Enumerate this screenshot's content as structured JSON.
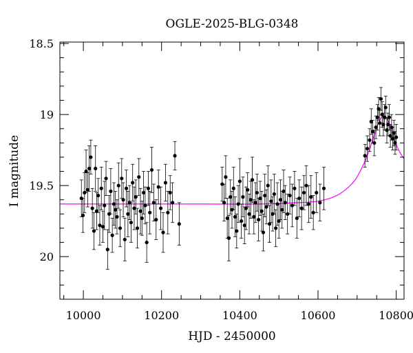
{
  "chart_data": {
    "type": "scatter",
    "title": "OGLE-2025-BLG-0348",
    "xlabel": "HJD - 2450000",
    "ylabel": "I magnitude",
    "xlim": [
      9940,
      10820
    ],
    "ylim": [
      20.3,
      18.49
    ],
    "y_inverted": true,
    "grid": false,
    "xticks": [
      10000,
      10200,
      10400,
      10600,
      10800
    ],
    "yticks": [
      18.5,
      19,
      19.5,
      20
    ],
    "xtick_labels": [
      "10000",
      "10200",
      "10400",
      "10600",
      "10800"
    ],
    "ytick_labels": [
      "18.5",
      "19",
      "19.5",
      "20"
    ],
    "colors": {
      "data": "#000000",
      "model": "#ff00ff",
      "axes": "#000000"
    },
    "model": {
      "name": "",
      "x": [
        9940,
        10100,
        10300,
        10450,
        10550,
        10600,
        10640,
        10670,
        10695,
        10715,
        10730,
        10742,
        10752,
        10760,
        10768,
        10775,
        10782,
        10790,
        10800,
        10810,
        10820
      ],
      "y": [
        19.63,
        19.63,
        19.63,
        19.63,
        19.62,
        19.61,
        19.58,
        19.53,
        19.46,
        19.36,
        19.26,
        19.16,
        19.08,
        19.03,
        19.01,
        19.02,
        19.06,
        19.13,
        19.21,
        19.27,
        19.31
      ]
    },
    "series": [
      {
        "name": "",
        "points": [
          [
            9995,
            19.59,
            0.13
          ],
          [
            9999,
            19.71,
            0.12
          ],
          [
            10003,
            19.55,
            0.14
          ],
          [
            10007,
            19.4,
            0.15
          ],
          [
            10011,
            19.53,
            0.12
          ],
          [
            10015,
            19.38,
            0.16
          ],
          [
            10019,
            19.3,
            0.12
          ],
          [
            10023,
            19.66,
            0.14
          ],
          [
            10027,
            19.82,
            0.13
          ],
          [
            10031,
            19.38,
            0.16
          ],
          [
            10034,
            19.68,
            0.13
          ],
          [
            10038,
            19.57,
            0.12
          ],
          [
            10042,
            19.78,
            0.14
          ],
          [
            10046,
            19.52,
            0.15
          ],
          [
            10050,
            19.79,
            0.11
          ],
          [
            10054,
            19.64,
            0.17
          ],
          [
            10058,
            19.45,
            0.12
          ],
          [
            10062,
            19.95,
            0.14
          ],
          [
            10066,
            19.7,
            0.13
          ],
          [
            10070,
            19.54,
            0.16
          ],
          [
            10074,
            19.85,
            0.12
          ],
          [
            10078,
            19.63,
            0.15
          ],
          [
            10082,
            19.67,
            0.13
          ],
          [
            10086,
            19.72,
            0.12
          ],
          [
            10090,
            19.5,
            0.16
          ],
          [
            10094,
            19.8,
            0.13
          ],
          [
            10098,
            19.45,
            0.14
          ],
          [
            10102,
            19.6,
            0.12
          ],
          [
            10106,
            19.88,
            0.15
          ],
          [
            10110,
            19.52,
            0.13
          ],
          [
            10114,
            19.7,
            0.16
          ],
          [
            10118,
            19.62,
            0.12
          ],
          [
            10122,
            19.76,
            0.14
          ],
          [
            10126,
            19.48,
            0.13
          ],
          [
            10130,
            19.66,
            0.15
          ],
          [
            10134,
            19.58,
            0.12
          ],
          [
            10138,
            19.8,
            0.14
          ],
          [
            10142,
            19.44,
            0.13
          ],
          [
            10146,
            19.68,
            0.16
          ],
          [
            10150,
            19.73,
            0.12
          ],
          [
            10154,
            19.55,
            0.15
          ],
          [
            10158,
            19.64,
            0.13
          ],
          [
            10162,
            19.9,
            0.14
          ],
          [
            10166,
            19.52,
            0.12
          ],
          [
            10170,
            19.69,
            0.15
          ],
          [
            10175,
            19.39,
            0.16
          ],
          [
            10180,
            19.62,
            0.13
          ],
          [
            10186,
            19.74,
            0.14
          ],
          [
            10192,
            19.51,
            0.12
          ],
          [
            10198,
            19.66,
            0.15
          ],
          [
            10204,
            19.83,
            0.14
          ],
          [
            10210,
            19.48,
            0.13
          ],
          [
            10216,
            19.69,
            0.15
          ],
          [
            10222,
            19.55,
            0.12
          ],
          [
            10228,
            19.62,
            0.14
          ],
          [
            10234,
            19.29,
            0.1
          ],
          [
            10245,
            19.77,
            0.15
          ],
          [
            10355,
            19.49,
            0.12
          ],
          [
            10360,
            19.62,
            0.13
          ],
          [
            10364,
            19.44,
            0.15
          ],
          [
            10368,
            19.73,
            0.14
          ],
          [
            10372,
            19.87,
            0.16
          ],
          [
            10376,
            19.58,
            0.12
          ],
          [
            10380,
            19.67,
            0.13
          ],
          [
            10384,
            19.52,
            0.15
          ],
          [
            10388,
            19.72,
            0.14
          ],
          [
            10392,
            19.82,
            0.12
          ],
          [
            10396,
            19.63,
            0.13
          ],
          [
            10400,
            19.47,
            0.16
          ],
          [
            10404,
            19.75,
            0.12
          ],
          [
            10408,
            19.58,
            0.14
          ],
          [
            10412,
            19.78,
            0.13
          ],
          [
            10416,
            19.66,
            0.15
          ],
          [
            10420,
            19.53,
            0.12
          ],
          [
            10424,
            19.7,
            0.14
          ],
          [
            10428,
            19.6,
            0.13
          ],
          [
            10432,
            19.46,
            0.16
          ],
          [
            10436,
            19.72,
            0.12
          ],
          [
            10440,
            19.62,
            0.14
          ],
          [
            10444,
            19.55,
            0.13
          ],
          [
            10448,
            19.74,
            0.15
          ],
          [
            10452,
            19.59,
            0.12
          ],
          [
            10456,
            19.68,
            0.14
          ],
          [
            10460,
            19.83,
            0.13
          ],
          [
            10464,
            19.57,
            0.15
          ],
          [
            10468,
            19.65,
            0.12
          ],
          [
            10472,
            19.5,
            0.14
          ],
          [
            10476,
            19.77,
            0.13
          ],
          [
            10480,
            19.61,
            0.15
          ],
          [
            10484,
            19.7,
            0.12
          ],
          [
            10488,
            19.56,
            0.14
          ],
          [
            10492,
            19.8,
            0.13
          ],
          [
            10496,
            19.63,
            0.15
          ],
          [
            10500,
            19.75,
            0.12
          ],
          [
            10504,
            19.6,
            0.14
          ],
          [
            10508,
            19.67,
            0.13
          ],
          [
            10512,
            19.54,
            0.15
          ],
          [
            10516,
            19.62,
            0.12
          ],
          [
            10522,
            19.7,
            0.14
          ],
          [
            10528,
            19.57,
            0.13
          ],
          [
            10534,
            19.64,
            0.15
          ],
          [
            10540,
            19.52,
            0.12
          ],
          [
            10546,
            19.73,
            0.14
          ],
          [
            10552,
            19.59,
            0.13
          ],
          [
            10558,
            19.66,
            0.15
          ],
          [
            10564,
            19.55,
            0.12
          ],
          [
            10570,
            19.5,
            0.14
          ],
          [
            10576,
            19.63,
            0.13
          ],
          [
            10582,
            19.58,
            0.15
          ],
          [
            10588,
            19.69,
            0.12
          ],
          [
            10596,
            19.55,
            0.14
          ],
          [
            10605,
            19.62,
            0.13
          ],
          [
            10615,
            19.52,
            0.15
          ],
          [
            10720,
            19.29,
            0.08
          ],
          [
            10726,
            19.24,
            0.09
          ],
          [
            10732,
            19.18,
            0.08
          ],
          [
            10736,
            19.05,
            0.09
          ],
          [
            10740,
            19.12,
            0.08
          ],
          [
            10744,
            19.2,
            0.09
          ],
          [
            10748,
            19.09,
            0.08
          ],
          [
            10752,
            19.02,
            0.09
          ],
          [
            10755,
            18.96,
            0.08
          ],
          [
            10758,
            19.06,
            0.09
          ],
          [
            10761,
            18.89,
            0.08
          ],
          [
            10764,
            19.0,
            0.09
          ],
          [
            10767,
            19.07,
            0.08
          ],
          [
            10770,
            19.02,
            0.09
          ],
          [
            10773,
            18.95,
            0.08
          ],
          [
            10776,
            19.11,
            0.09
          ],
          [
            10779,
            19.07,
            0.08
          ],
          [
            10782,
            19.02,
            0.09
          ],
          [
            10785,
            19.15,
            0.08
          ],
          [
            10788,
            19.09,
            0.09
          ],
          [
            10791,
            19.17,
            0.08
          ],
          [
            10794,
            19.13,
            0.09
          ],
          [
            10797,
            19.2,
            0.08
          ],
          [
            10800,
            19.16,
            0.09
          ]
        ]
      }
    ]
  }
}
